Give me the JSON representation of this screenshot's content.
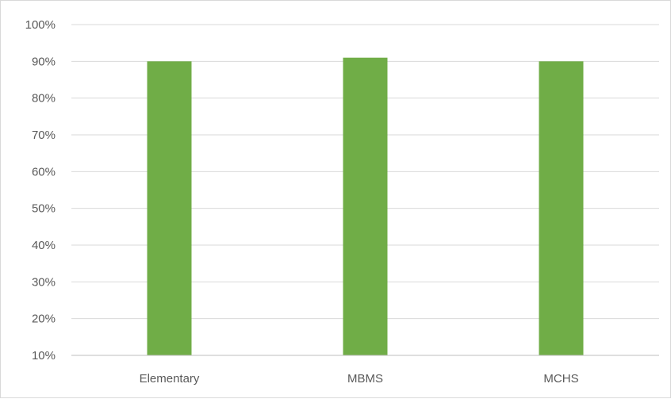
{
  "chart_data": {
    "type": "bar",
    "categories": [
      "Elementary",
      "MBMS",
      "MCHS"
    ],
    "values": [
      90,
      91,
      90
    ],
    "ylim": [
      10,
      100
    ],
    "yticks": [
      10,
      20,
      30,
      40,
      50,
      60,
      70,
      80,
      90,
      100
    ],
    "ytick_format": "percent",
    "title": "",
    "xlabel": "",
    "ylabel": "",
    "grid": true,
    "legend": "none",
    "bar_color": "#70ad47"
  }
}
